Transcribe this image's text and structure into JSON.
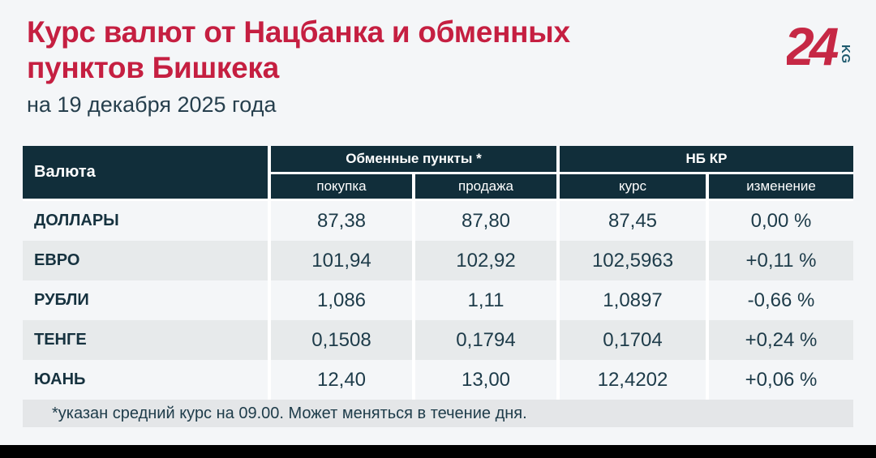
{
  "logo": {
    "number": "24",
    "suffix": "KG"
  },
  "colors": {
    "accent_red": "#c51f41",
    "header_bg": "#112e3a",
    "text_dark": "#1d3b49",
    "row_alt": "#e7eaeb",
    "footnote_bg": "#e4e6e8",
    "page_bg": "#f4f6f8",
    "logo_kg_teal": "#1e5a6e"
  },
  "chart_data": {
    "type": "table",
    "title": "Курс валют от Нацбанка и обменных пунктов Бишкека",
    "subtitle": "на 19 декабря 2025 года",
    "footnote": "*указан средний курс на 09.00. Может меняться в течение дня.",
    "row_header": "Валюта",
    "column_groups": [
      {
        "label": "Обменные пункты *",
        "columns": [
          "покупка",
          "продажа"
        ]
      },
      {
        "label": "НБ КР",
        "columns": [
          "курс",
          "изменение"
        ]
      }
    ],
    "rows": [
      {
        "currency": "ДОЛЛАРЫ",
        "buy": "87,38",
        "sell": "87,80",
        "rate": "87,45",
        "change": "0,00 %"
      },
      {
        "currency": "ЕВРО",
        "buy": "101,94",
        "sell": "102,92",
        "rate": "102,5963",
        "change": "+0,11 %"
      },
      {
        "currency": "РУБЛИ",
        "buy": "1,086",
        "sell": "1,11",
        "rate": "1,0897",
        "change": "-0,66 %"
      },
      {
        "currency": "ТЕНГЕ",
        "buy": "0,1508",
        "sell": "0,1794",
        "rate": "0,1704",
        "change": "+0,24 %"
      },
      {
        "currency": "ЮАНЬ",
        "buy": "12,40",
        "sell": "13,00",
        "rate": "12,4202",
        "change": "+0,06 %"
      }
    ]
  }
}
